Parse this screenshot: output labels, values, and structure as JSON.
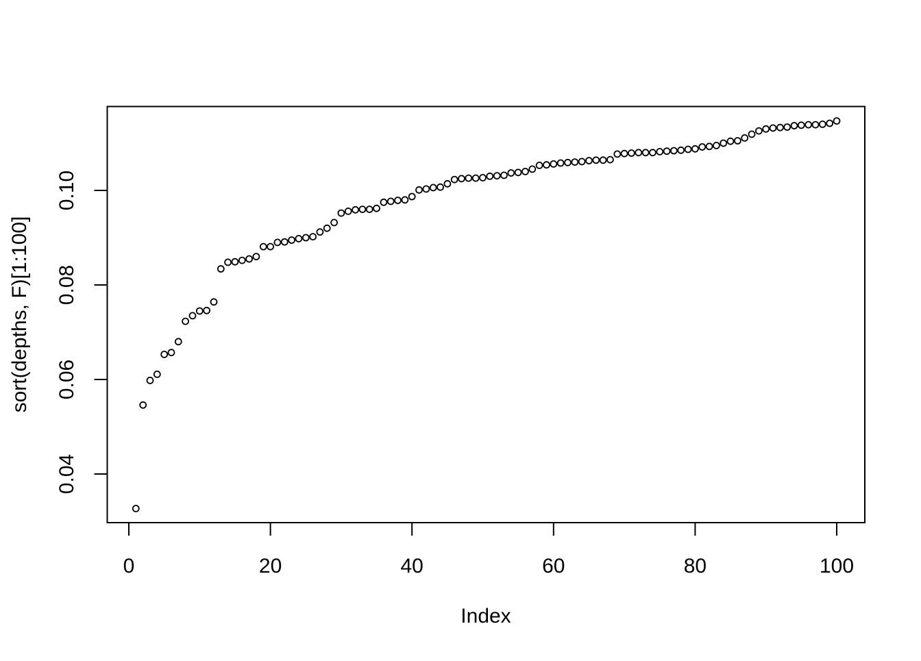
{
  "page": {
    "background": "#ffffff",
    "foreground": "#000000"
  },
  "chart_data": {
    "type": "scatter",
    "xlabel": "Index",
    "ylabel": "sort(depths, F)[1:100]",
    "marker": "open-circle",
    "marker_color": "#000000",
    "grid": "off",
    "legend": "none",
    "xlim": [
      -3,
      104
    ],
    "ylim": [
      0.0297,
      0.1178
    ],
    "x_axis": {
      "tick_values": [
        0,
        20,
        40,
        60,
        80,
        100
      ],
      "tick_labels": [
        "0",
        "20",
        "40",
        "60",
        "80",
        "100"
      ]
    },
    "y_axis": {
      "tick_values": [
        0.04,
        0.06,
        0.08,
        0.1
      ],
      "tick_labels": [
        "0.04",
        "0.06",
        "0.08",
        "0.10"
      ]
    },
    "x": [
      1,
      2,
      3,
      4,
      5,
      6,
      7,
      8,
      9,
      10,
      11,
      12,
      13,
      14,
      15,
      16,
      17,
      18,
      19,
      20,
      21,
      22,
      23,
      24,
      25,
      26,
      27,
      28,
      29,
      30,
      31,
      32,
      33,
      34,
      35,
      36,
      37,
      38,
      39,
      40,
      41,
      42,
      43,
      44,
      45,
      46,
      47,
      48,
      49,
      50,
      51,
      52,
      53,
      54,
      55,
      56,
      57,
      58,
      59,
      60,
      61,
      62,
      63,
      64,
      65,
      66,
      67,
      68,
      69,
      70,
      71,
      72,
      73,
      74,
      75,
      76,
      77,
      78,
      79,
      80,
      81,
      82,
      83,
      84,
      85,
      86,
      87,
      88,
      89,
      90,
      91,
      92,
      93,
      94,
      95,
      96,
      97,
      98,
      99,
      100
    ],
    "y": [
      0.0327,
      0.0546,
      0.0598,
      0.0611,
      0.0653,
      0.0657,
      0.068,
      0.0723,
      0.0735,
      0.0745,
      0.0746,
      0.0764,
      0.0834,
      0.0848,
      0.0849,
      0.0852,
      0.0855,
      0.086,
      0.0881,
      0.0881,
      0.089,
      0.0891,
      0.0895,
      0.0898,
      0.09,
      0.0902,
      0.0912,
      0.092,
      0.0932,
      0.0952,
      0.0956,
      0.0959,
      0.096,
      0.096,
      0.0962,
      0.0975,
      0.0977,
      0.0979,
      0.098,
      0.0987,
      0.1001,
      0.1003,
      0.1006,
      0.1007,
      0.1014,
      0.1023,
      0.1025,
      0.1026,
      0.1026,
      0.1027,
      0.103,
      0.1031,
      0.1032,
      0.1037,
      0.1038,
      0.104,
      0.1045,
      0.1053,
      0.1054,
      0.1056,
      0.1058,
      0.1059,
      0.106,
      0.1061,
      0.1063,
      0.1064,
      0.1064,
      0.1065,
      0.1077,
      0.1078,
      0.1079,
      0.108,
      0.108,
      0.108,
      0.1082,
      0.1083,
      0.1084,
      0.1085,
      0.1087,
      0.1088,
      0.1092,
      0.1093,
      0.1095,
      0.11,
      0.1104,
      0.1105,
      0.1111,
      0.1119,
      0.1126,
      0.113,
      0.1132,
      0.1133,
      0.1134,
      0.1137,
      0.1138,
      0.1139,
      0.1139,
      0.114,
      0.1142,
      0.1147
    ]
  }
}
